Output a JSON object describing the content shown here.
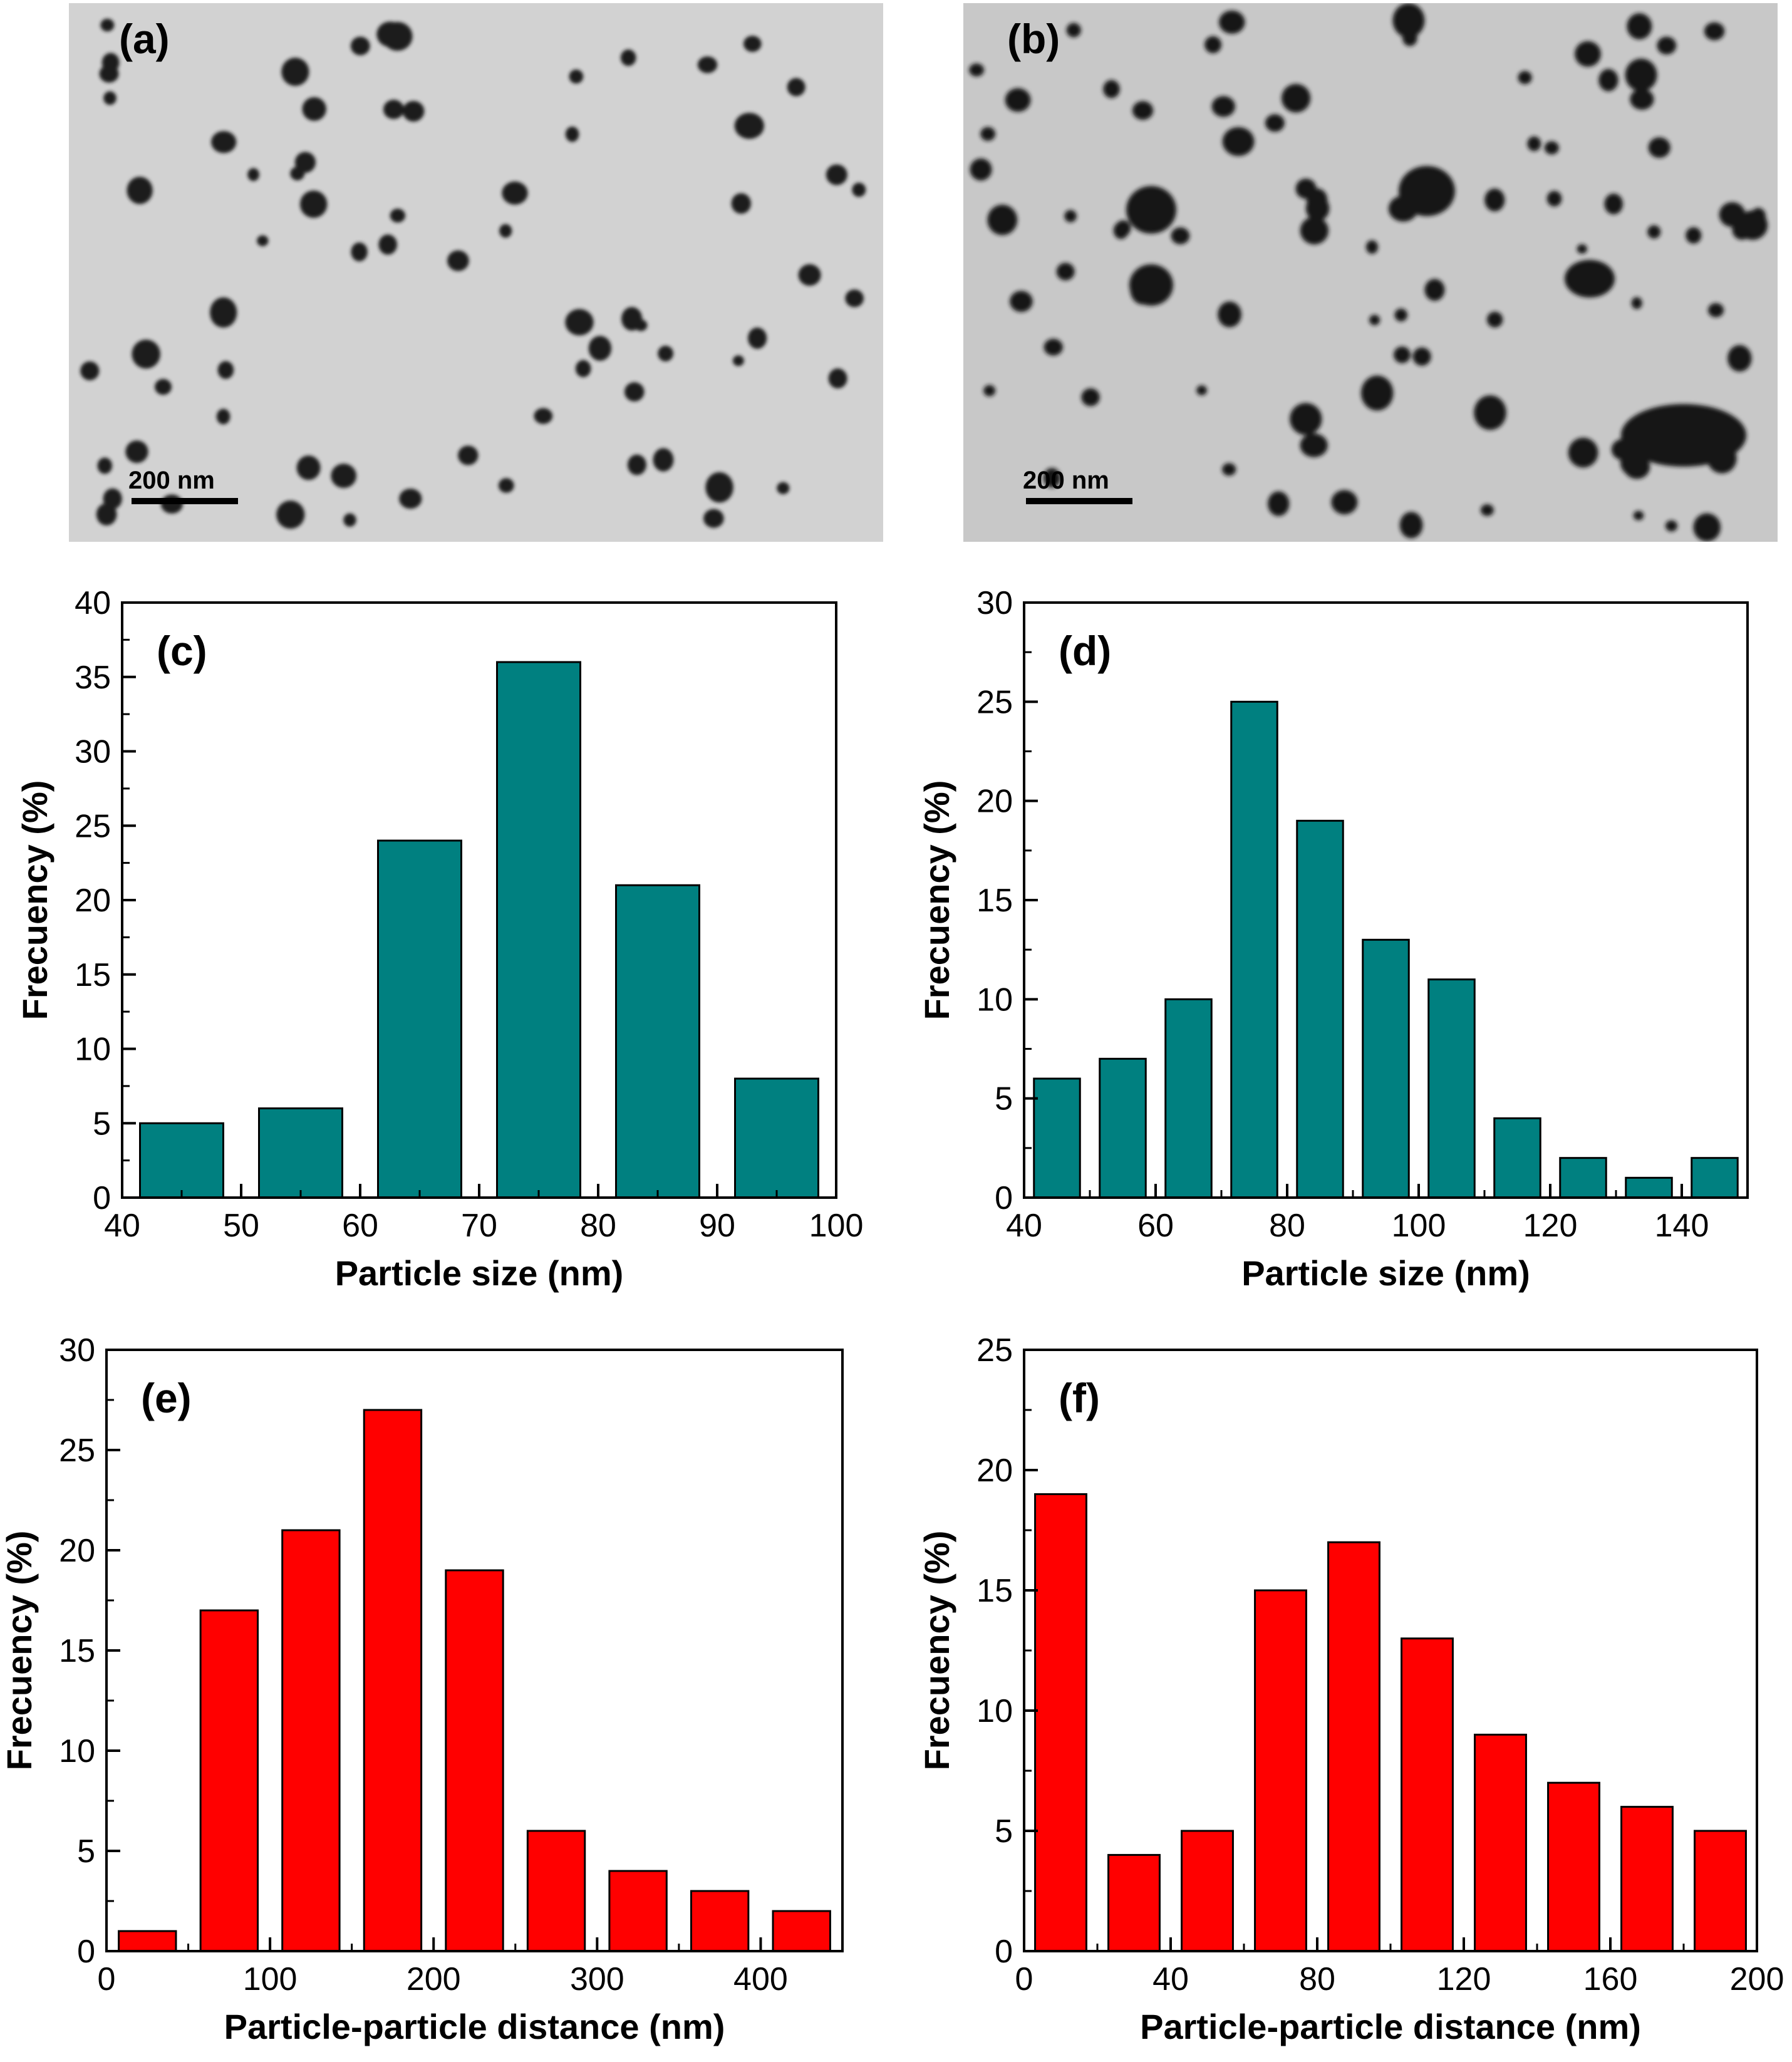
{
  "images": [
    {
      "panel_label": "(a)",
      "scale_bar_label": "200 nm"
    },
    {
      "panel_label": "(b)",
      "scale_bar_label": "200 nm"
    }
  ],
  "colors": {
    "teal": "#008080",
    "red": "#ff0000",
    "axis": "#000000"
  },
  "chart_data": [
    {
      "type": "bar",
      "panel_label": "(c)",
      "xlabel": "Particle size (nm)",
      "ylabel": "Frecuency (%)",
      "xlim": [
        40,
        100
      ],
      "ylim": [
        0,
        40
      ],
      "xticks": [
        40,
        50,
        60,
        70,
        80,
        90,
        100
      ],
      "yticks": [
        0,
        5,
        10,
        15,
        20,
        25,
        30,
        35,
        40
      ],
      "bin_width": 7,
      "x": [
        45,
        55,
        65,
        75,
        85,
        95
      ],
      "values": [
        5,
        6,
        24,
        36,
        21,
        8
      ],
      "color": "#008080"
    },
    {
      "type": "bar",
      "panel_label": "(d)",
      "xlabel": "Particle size (nm)",
      "ylabel": "Frecuency (%)",
      "xlim": [
        40,
        150
      ],
      "ylim": [
        0,
        30
      ],
      "xticks": [
        40,
        60,
        80,
        100,
        120,
        140
      ],
      "yticks": [
        0,
        5,
        10,
        15,
        20,
        25,
        30
      ],
      "bin_width": 7,
      "x": [
        45,
        55,
        65,
        75,
        85,
        95,
        105,
        115,
        125,
        135,
        145
      ],
      "values": [
        6,
        7,
        10,
        25,
        19,
        13,
        11,
        4,
        2,
        1,
        2
      ],
      "color": "#008080"
    },
    {
      "type": "bar",
      "panel_label": "(e)",
      "xlabel": "Particle-particle distance (nm)",
      "ylabel": "Frecuency (%)",
      "xlim": [
        0,
        450
      ],
      "ylim": [
        0,
        30
      ],
      "xticks": [
        0,
        100,
        200,
        300,
        400
      ],
      "yticks": [
        0,
        5,
        10,
        15,
        20,
        25,
        30
      ],
      "bin_width": 35,
      "x": [
        25,
        75,
        125,
        175,
        225,
        275,
        325,
        375,
        425
      ],
      "values": [
        1,
        17,
        21,
        27,
        19,
        6,
        4,
        3,
        2
      ],
      "color": "#ff0000"
    },
    {
      "type": "bar",
      "panel_label": "(f)",
      "xlabel": "Particle-particle distance (nm)",
      "ylabel": "Frecuency (%)",
      "xlim": [
        0,
        200
      ],
      "ylim": [
        0,
        25
      ],
      "xticks": [
        0,
        40,
        80,
        120,
        160,
        200
      ],
      "yticks": [
        0,
        5,
        10,
        15,
        20,
        25
      ],
      "bin_width": 14,
      "x": [
        10,
        30,
        50,
        70,
        90,
        110,
        130,
        150,
        170,
        190
      ],
      "values": [
        19,
        4,
        5,
        15,
        17,
        13,
        9,
        7,
        6,
        5
      ],
      "color": "#ff0000"
    }
  ]
}
